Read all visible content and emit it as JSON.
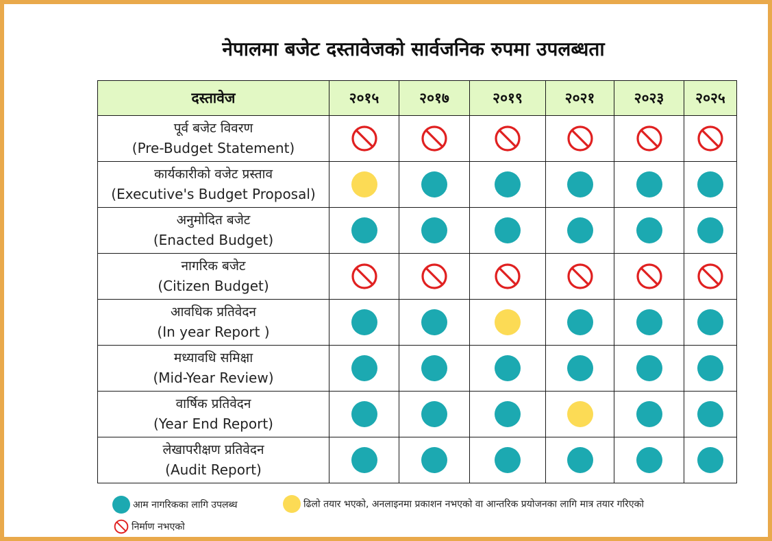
{
  "title": "नेपालमा बजेट दस्तावेजको सार्वजनिक रुपमा उपलब्धता",
  "colors": {
    "frame": "#e9a94b",
    "header_bg": "#e2f8c4",
    "available": "#1ca9b1",
    "late": "#fcdb55",
    "not_produced": "#e02020"
  },
  "table": {
    "doc_header": "दस्तावेज",
    "years": [
      "२०१५",
      "२०१७",
      "२०१९",
      "२०२१",
      "२०२३",
      "२०२५"
    ],
    "rows": [
      {
        "name_np": "पूर्व बजेट विवरण",
        "name_en": "(Pre-Budget Statement)",
        "status": [
          "no",
          "no",
          "no",
          "no",
          "no",
          "no"
        ]
      },
      {
        "name_np": "कार्यकारीको वजेट प्रस्ताव",
        "name_en": "(Executive's Budget Proposal)",
        "status": [
          "late",
          "yes",
          "yes",
          "yes",
          "yes",
          "yes"
        ]
      },
      {
        "name_np": "अनुमोदित बजेट",
        "name_en": "(Enacted Budget)",
        "status": [
          "yes",
          "yes",
          "yes",
          "yes",
          "yes",
          "yes"
        ]
      },
      {
        "name_np": "नागरिक बजेट",
        "name_en": "(Citizen Budget)",
        "status": [
          "no",
          "no",
          "no",
          "no",
          "no",
          "no"
        ]
      },
      {
        "name_np": "आवधिक प्रतिवेदन",
        "name_en": "(In year Report )",
        "status": [
          "yes",
          "yes",
          "late",
          "yes",
          "yes",
          "yes"
        ]
      },
      {
        "name_np": "मध्यावधि समिक्षा",
        "name_en": "(Mid-Year Review)",
        "status": [
          "yes",
          "yes",
          "yes",
          "yes",
          "yes",
          "yes"
        ]
      },
      {
        "name_np": "वार्षिक प्रतिवेदन",
        "name_en": "(Year End Report)",
        "status": [
          "yes",
          "yes",
          "yes",
          "late",
          "yes",
          "yes"
        ]
      },
      {
        "name_np": "लेखापरीक्षण प्रतिवेदन",
        "name_en": "(Audit Report)",
        "status": [
          "yes",
          "yes",
          "yes",
          "yes",
          "yes",
          "yes"
        ]
      }
    ]
  },
  "legend": {
    "available": "आम नागरिकका लागि उपलब्ध",
    "late": "ढिलो तयार भएको, अनलाइनमा प्रकाशन नभएको वा आन्तरिक प्रयोजनका लागि मात्र तयार गरिएको",
    "not_produced": "निर्माण नभएको"
  }
}
